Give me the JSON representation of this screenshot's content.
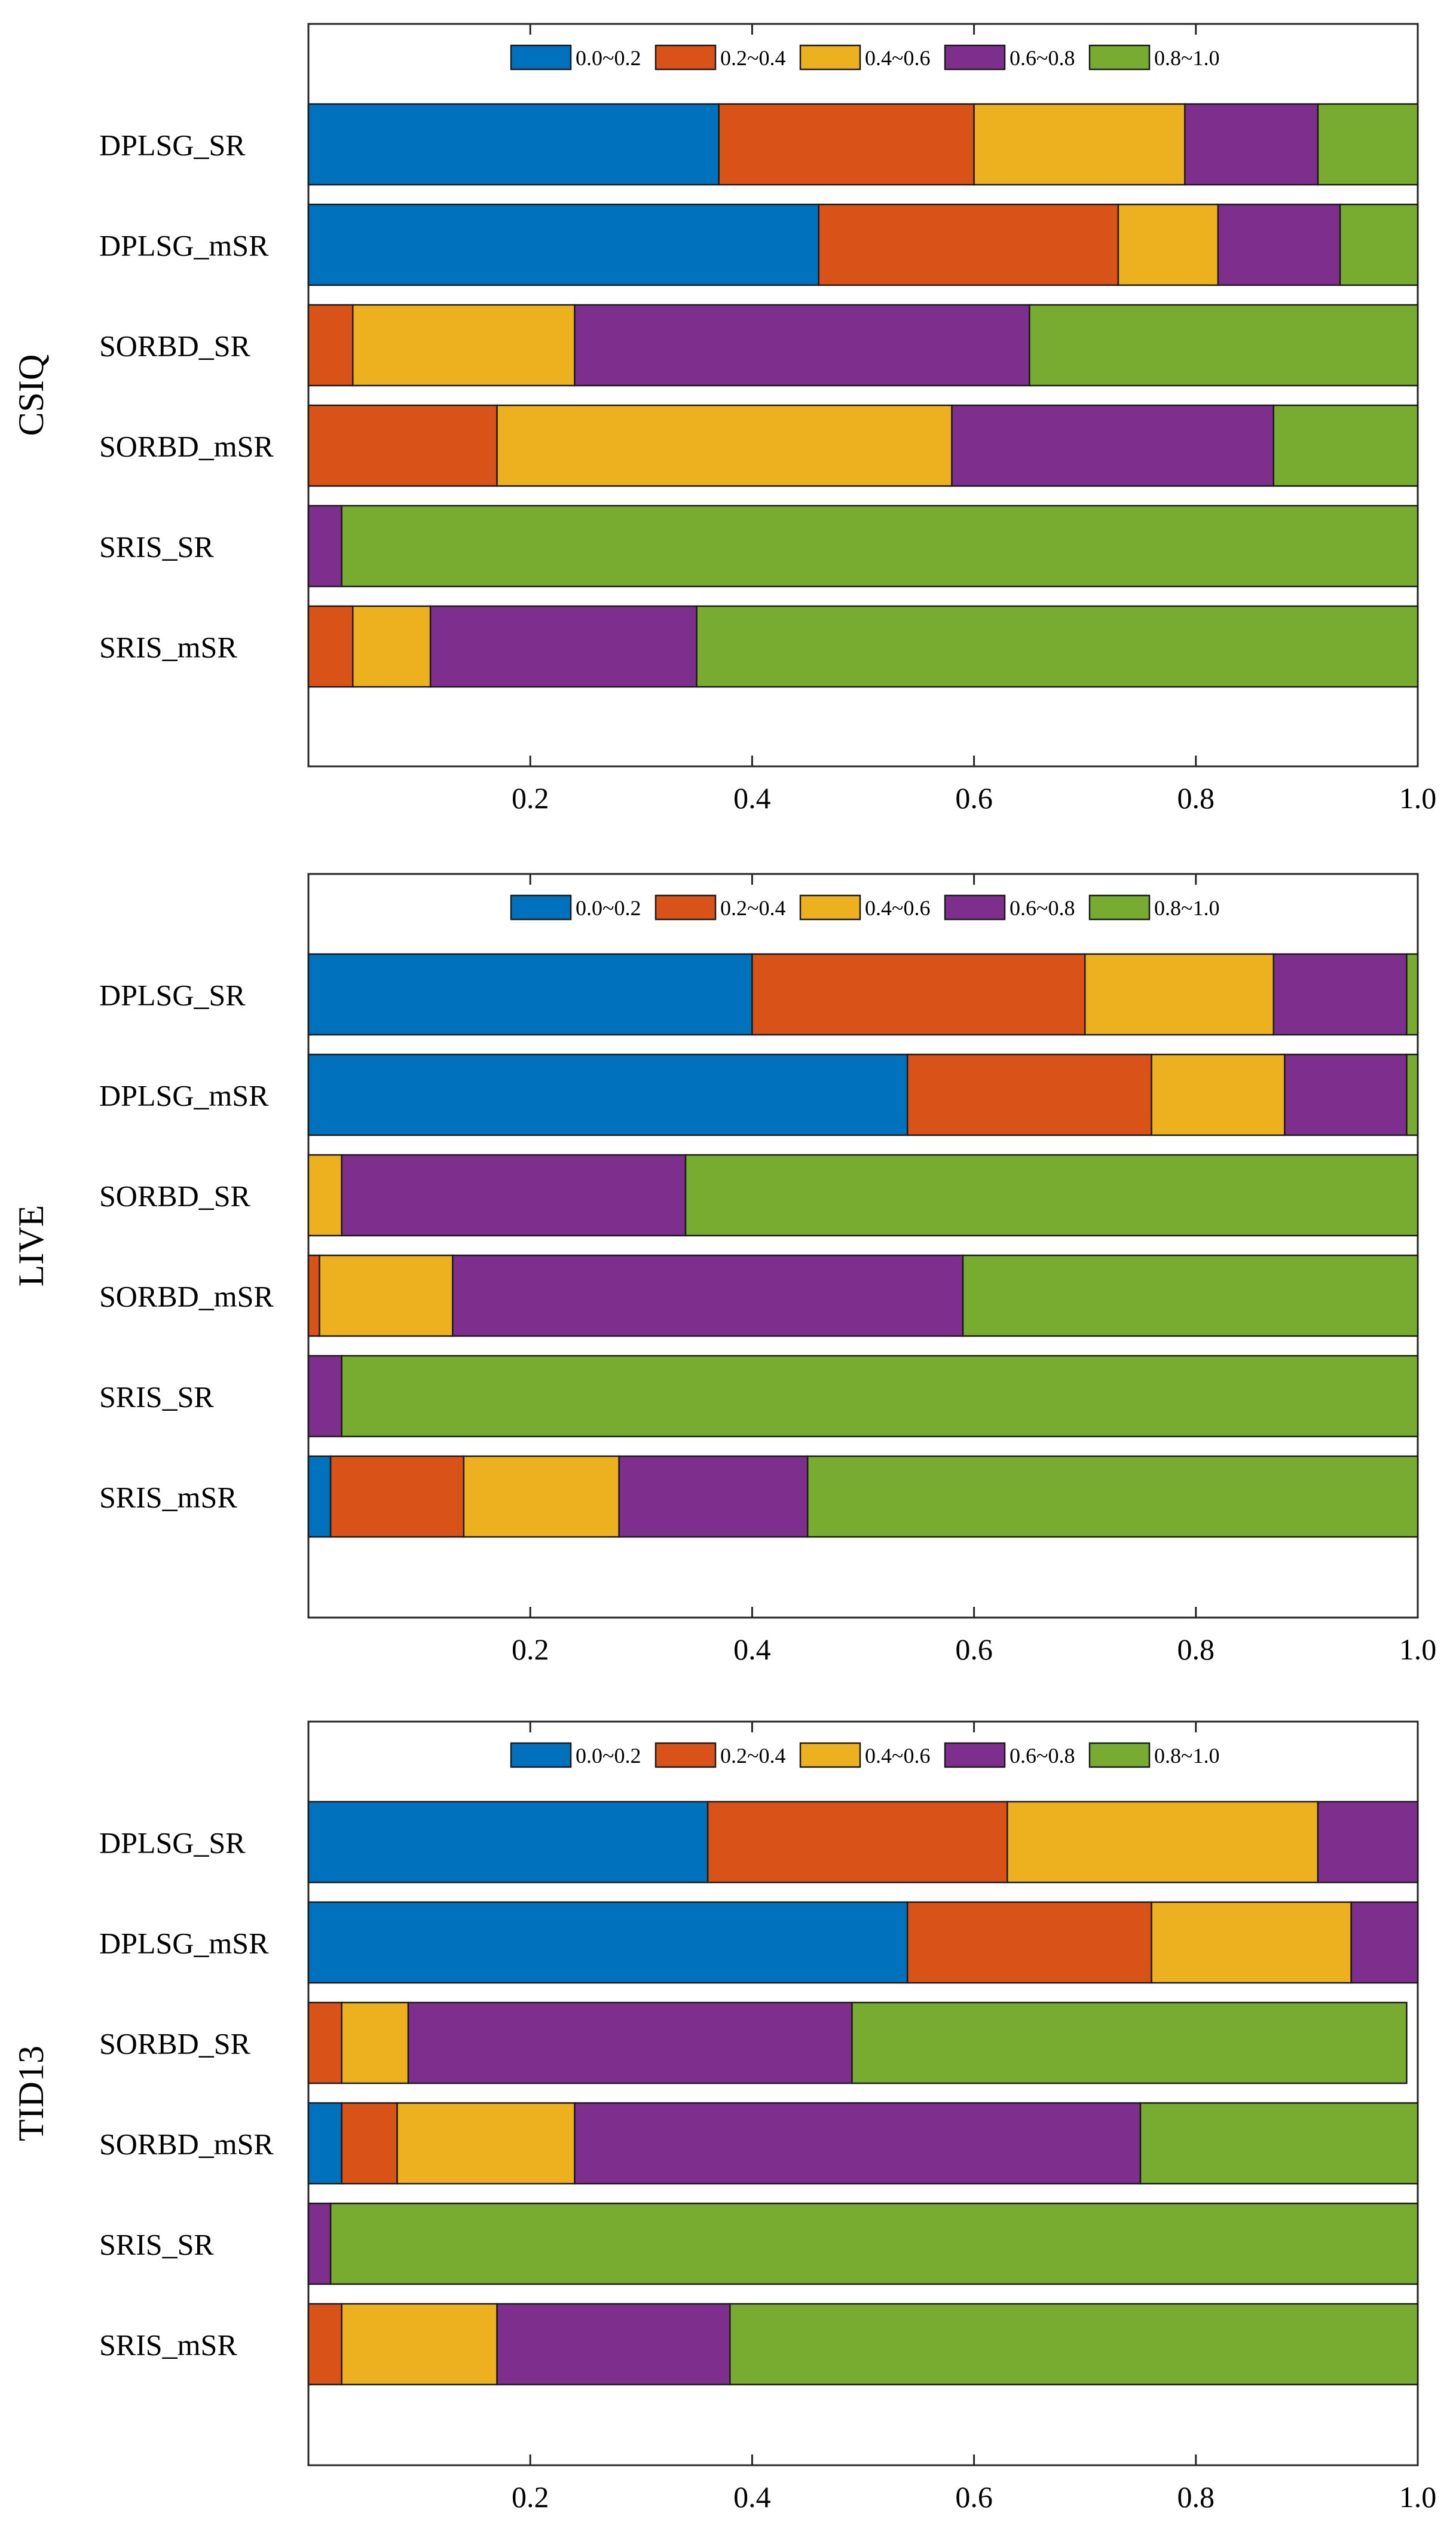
{
  "chart_data": [
    {
      "type": "bar",
      "orientation": "horizontal-stacked",
      "title": "",
      "ylabel": "CSIQ",
      "xlabel": "",
      "xlim": [
        0,
        1.0
      ],
      "xticks": [
        0.2,
        0.4,
        0.6,
        0.8,
        1.0
      ],
      "xtick_labels": [
        "0.2",
        "0.4",
        "0.6",
        "0.8",
        "1.0"
      ],
      "categories": [
        "DPLSG_SR",
        "DPLSG_mSR",
        "SORBD_SR",
        "SORBD_mSR",
        "SRIS_SR",
        "SRIS_mSR"
      ],
      "series": [
        {
          "name": "0.0~0.2",
          "color": "#0072BD",
          "values": [
            0.37,
            0.46,
            0.0,
            0.0,
            0.0,
            0.0
          ]
        },
        {
          "name": "0.2~0.4",
          "color": "#D95319",
          "values": [
            0.23,
            0.27,
            0.04,
            0.17,
            0.0,
            0.04
          ]
        },
        {
          "name": "0.4~0.6",
          "color": "#EDB120",
          "values": [
            0.19,
            0.09,
            0.2,
            0.41,
            0.0,
            0.07
          ]
        },
        {
          "name": "0.6~0.8",
          "color": "#7E2F8E",
          "values": [
            0.12,
            0.11,
            0.41,
            0.29,
            0.03,
            0.24
          ]
        },
        {
          "name": "0.8~1.0",
          "color": "#77AC30",
          "values": [
            0.09,
            0.07,
            0.35,
            0.13,
            0.97,
            0.65
          ]
        }
      ],
      "legend_position": "top"
    },
    {
      "type": "bar",
      "orientation": "horizontal-stacked",
      "title": "",
      "ylabel": "LIVE",
      "xlabel": "",
      "xlim": [
        0,
        1.0
      ],
      "xticks": [
        0.2,
        0.4,
        0.6,
        0.8,
        1.0
      ],
      "xtick_labels": [
        "0.2",
        "0.4",
        "0.6",
        "0.8",
        "1.0"
      ],
      "categories": [
        "DPLSG_SR",
        "DPLSG_mSR",
        "SORBD_SR",
        "SORBD_mSR",
        "SRIS_SR",
        "SRIS_mSR"
      ],
      "series": [
        {
          "name": "0.0~0.2",
          "color": "#0072BD",
          "values": [
            0.4,
            0.54,
            0.0,
            0.0,
            0.0,
            0.02
          ]
        },
        {
          "name": "0.2~0.4",
          "color": "#D95319",
          "values": [
            0.3,
            0.22,
            0.0,
            0.01,
            0.0,
            0.12
          ]
        },
        {
          "name": "0.4~0.6",
          "color": "#EDB120",
          "values": [
            0.17,
            0.12,
            0.03,
            0.12,
            0.0,
            0.14
          ]
        },
        {
          "name": "0.6~0.8",
          "color": "#7E2F8E",
          "values": [
            0.12,
            0.11,
            0.31,
            0.46,
            0.03,
            0.17
          ]
        },
        {
          "name": "0.8~1.0",
          "color": "#77AC30",
          "values": [
            0.01,
            0.01,
            0.66,
            0.41,
            0.97,
            0.55
          ]
        }
      ],
      "legend_position": "top"
    },
    {
      "type": "bar",
      "orientation": "horizontal-stacked",
      "title": "",
      "ylabel": "TID13",
      "xlabel": "",
      "xlim": [
        0,
        1.0
      ],
      "xticks": [
        0.2,
        0.4,
        0.6,
        0.8,
        1.0
      ],
      "xtick_labels": [
        "0.2",
        "0.4",
        "0.6",
        "0.8",
        "1.0"
      ],
      "categories": [
        "DPLSG_SR",
        "DPLSG_mSR",
        "SORBD_SR",
        "SORBD_mSR",
        "SRIS_SR",
        "SRIS_mSR"
      ],
      "series": [
        {
          "name": "0.0~0.2",
          "color": "#0072BD",
          "values": [
            0.36,
            0.54,
            0.0,
            0.03,
            0.0,
            0.0
          ]
        },
        {
          "name": "0.2~0.4",
          "color": "#D95319",
          "values": [
            0.27,
            0.22,
            0.03,
            0.05,
            0.0,
            0.03
          ]
        },
        {
          "name": "0.4~0.6",
          "color": "#EDB120",
          "values": [
            0.28,
            0.18,
            0.06,
            0.16,
            0.0,
            0.14
          ]
        },
        {
          "name": "0.6~0.8",
          "color": "#7E2F8E",
          "values": [
            0.09,
            0.06,
            0.4,
            0.51,
            0.02,
            0.21
          ]
        },
        {
          "name": "0.8~1.0",
          "color": "#77AC30",
          "values": [
            0.0,
            0.0,
            0.5,
            0.25,
            0.98,
            0.62
          ]
        }
      ],
      "legend_position": "top"
    }
  ]
}
